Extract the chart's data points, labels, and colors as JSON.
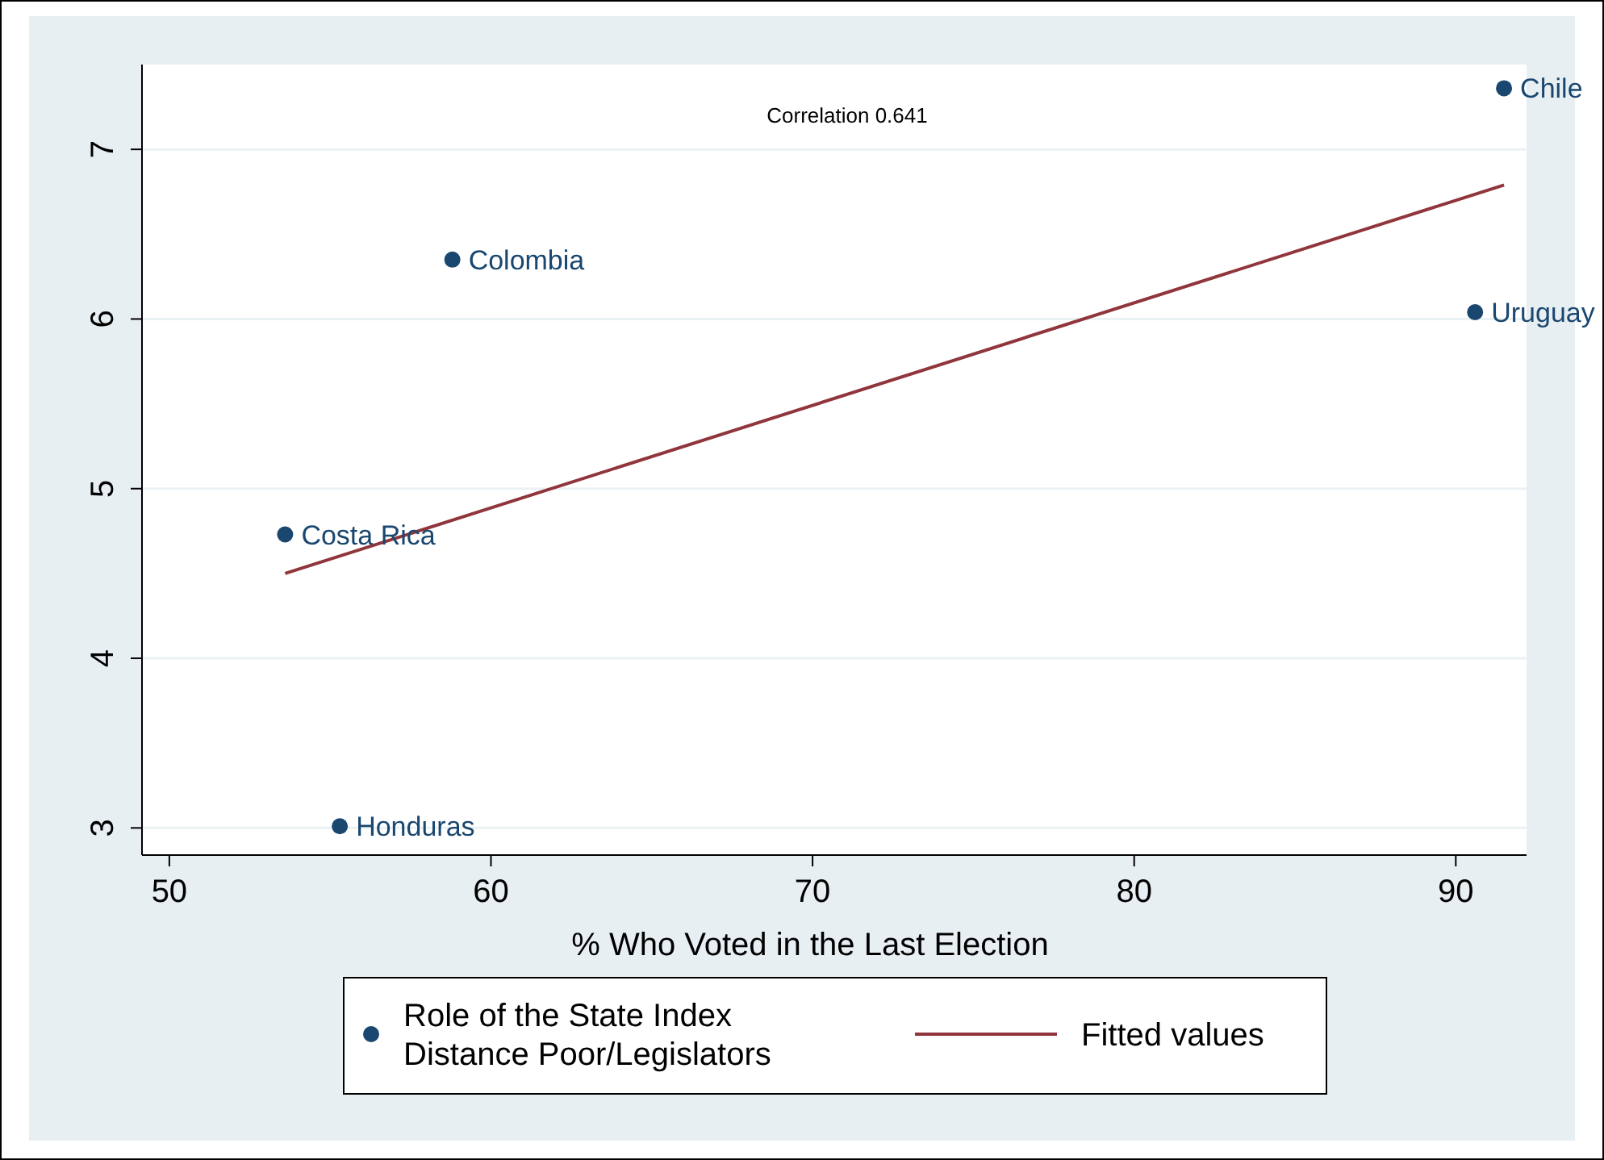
{
  "chart_data": {
    "type": "scatter",
    "xlabel": "% Who Voted in the Last Election",
    "xlim": [
      49.15,
      92.2
    ],
    "xticks": [
      50,
      60,
      70,
      80,
      90
    ],
    "ylim": [
      2.84,
      7.5
    ],
    "yticks": [
      3,
      4,
      5,
      6,
      7
    ],
    "grid": "y",
    "legend": "bottom",
    "series": [
      {
        "name": "Role of the State Index\nDistance Poor/Legislators",
        "color": "#1a476f",
        "marker": "circle",
        "x": [
          91.5,
          58.8,
          90.6,
          53.6,
          55.3
        ],
        "values": [
          7.36,
          6.35,
          6.04,
          4.73,
          3.01
        ]
      },
      {
        "name": "Fitted values",
        "type": "line",
        "marker": "none",
        "color": "#90353b",
        "x": [
          53.6,
          91.5
        ],
        "values": [
          4.5,
          6.79
        ]
      }
    ],
    "annotations": [
      "Correlation 0.641",
      {
        "text": "Chile",
        "x": 91.5,
        "y": 7.36
      },
      {
        "text": "Colombia",
        "x": 58.8,
        "y": 6.35
      },
      {
        "text": "Uruguay",
        "x": 90.6,
        "y": 6.04
      },
      {
        "text": "Costa Rica",
        "x": 53.6,
        "y": 4.73
      },
      {
        "text": "Honduras",
        "x": 55.3,
        "y": 3.01
      }
    ]
  }
}
